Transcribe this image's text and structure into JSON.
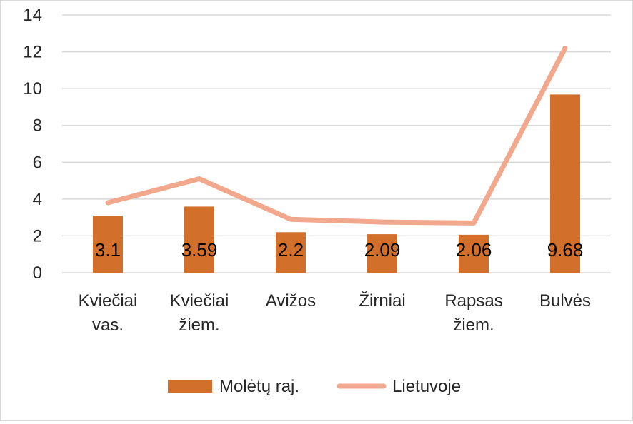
{
  "chart_data": {
    "type": "bar",
    "categories": [
      [
        "Kviečiai",
        "vas."
      ],
      [
        "Kviečiai",
        "žiem."
      ],
      [
        "Avižos"
      ],
      [
        "Žirniai"
      ],
      [
        "Rapsas",
        "žiem."
      ],
      [
        "Bulvės"
      ]
    ],
    "series": [
      {
        "name": "Molėtų raj.",
        "type": "bar",
        "color": "#d2702b",
        "values": [
          3.1,
          3.59,
          2.2,
          2.09,
          2.06,
          9.68
        ],
        "data_labels": [
          "3.1",
          "3.59",
          "2.2",
          "2.09",
          "2.06",
          "9.68"
        ]
      },
      {
        "name": "Lietuvoje",
        "type": "line",
        "color": "#f2a88c",
        "values": [
          3.8,
          5.1,
          2.9,
          2.75,
          2.7,
          12.2
        ]
      }
    ],
    "y_ticks": [
      "0",
      "2",
      "4",
      "6",
      "8",
      "10",
      "12",
      "14"
    ],
    "ylim": [
      0,
      14
    ],
    "grid": true,
    "legend_position": "bottom"
  }
}
